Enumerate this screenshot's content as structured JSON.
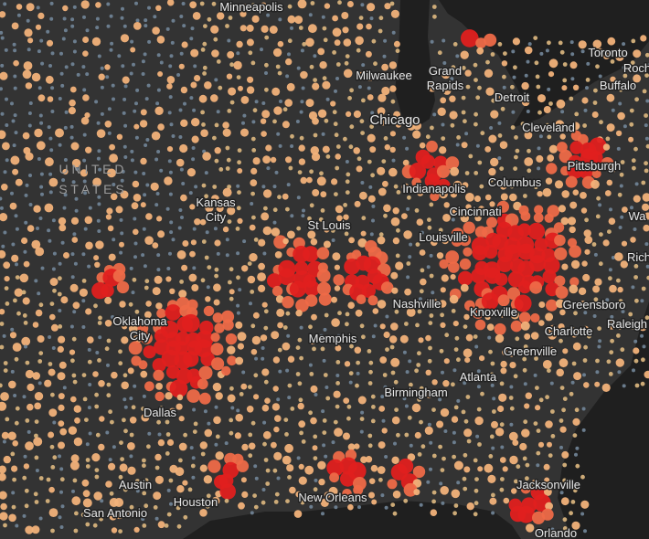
{
  "map": {
    "labels": [
      {
        "lines": [
          "Minneapolis"
        ]
      },
      {
        "lines": [
          "Milwaukee"
        ]
      },
      {
        "lines": [
          "Grand",
          "Rapids"
        ]
      },
      {
        "lines": [
          "Detroit"
        ]
      },
      {
        "lines": [
          "Toronto"
        ]
      },
      {
        "lines": [
          "Roch"
        ]
      },
      {
        "lines": [
          "Buffalo"
        ]
      },
      {
        "lines": [
          "Chicago"
        ]
      },
      {
        "lines": [
          "Cleveland"
        ]
      },
      {
        "lines": [
          "Pittsburgh"
        ]
      },
      {
        "lines": [
          "U N I T E D",
          "S T A T E S"
        ]
      },
      {
        "lines": [
          "Indianapolis"
        ]
      },
      {
        "lines": [
          "Columbus"
        ]
      },
      {
        "lines": [
          "Kansas",
          "City"
        ]
      },
      {
        "lines": [
          "St Louis"
        ]
      },
      {
        "lines": [
          "Cincinnati"
        ]
      },
      {
        "lines": [
          "Louisville"
        ]
      },
      {
        "lines": [
          "Wa"
        ]
      },
      {
        "lines": [
          "Rich"
        ]
      },
      {
        "lines": [
          "Oklahoma",
          "City"
        ]
      },
      {
        "lines": [
          "Nashville"
        ]
      },
      {
        "lines": [
          "Knoxville"
        ]
      },
      {
        "lines": [
          "Greensboro"
        ]
      },
      {
        "lines": [
          "Raleigh"
        ]
      },
      {
        "lines": [
          "Charlotte"
        ]
      },
      {
        "lines": [
          "Memphis"
        ]
      },
      {
        "lines": [
          "Greenville"
        ]
      },
      {
        "lines": [
          "Atlanta"
        ]
      },
      {
        "lines": [
          "Birmingham"
        ]
      },
      {
        "lines": [
          "Dallas"
        ]
      },
      {
        "lines": [
          "Austin"
        ]
      },
      {
        "lines": [
          "Jacksonville"
        ]
      },
      {
        "lines": [
          "Houston"
        ]
      },
      {
        "lines": [
          "New Orleans"
        ]
      },
      {
        "lines": [
          "San Antonio"
        ]
      },
      {
        "lines": [
          "Orlando"
        ]
      }
    ]
  }
}
